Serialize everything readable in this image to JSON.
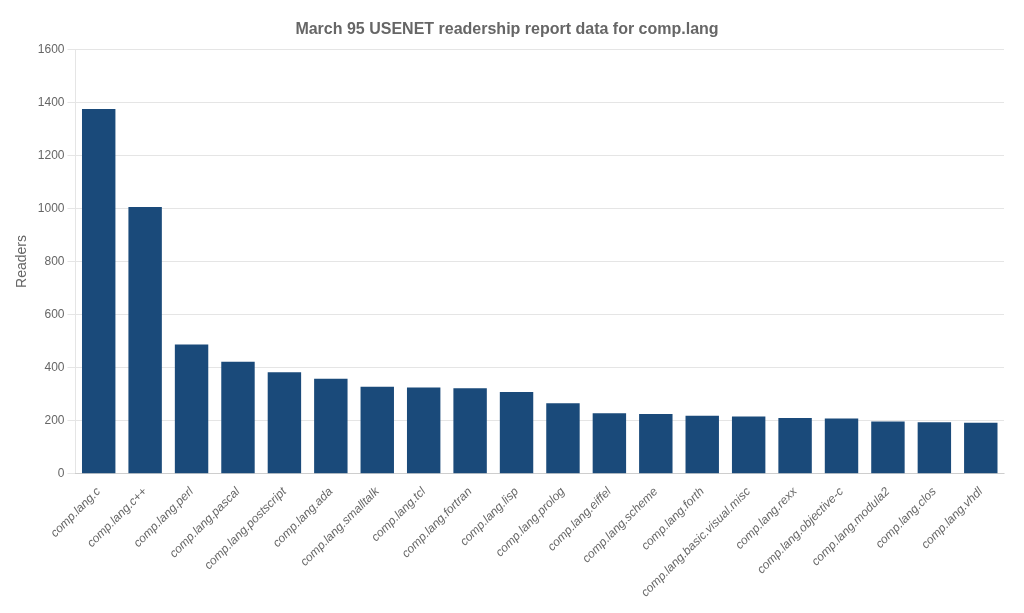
{
  "chart_data": {
    "type": "bar",
    "title": "March 95 USENET readership report data for comp.lang",
    "ylabel": "Readers",
    "categories": [
      "comp.lang.c",
      "comp.lang.c++",
      "comp.lang.perl",
      "comp.lang.pascal",
      "comp.lang.postscript",
      "comp.lang.ada",
      "comp.lang.smalltalk",
      "comp.lang.tcl",
      "comp.lang.fortran",
      "comp.lang.lisp",
      "comp.lang.prolog",
      "comp.lang.eiffel",
      "comp.lang.scheme",
      "comp.lang.forth",
      "comp.lang.basic.visual.misc",
      "comp.lang.rexx",
      "comp.lang.objective-c",
      "comp.lang.modula2",
      "comp.lang.clos",
      "comp.lang.vhdl"
    ],
    "values": [
      1375,
      1005,
      487,
      422,
      382,
      358,
      328,
      325,
      322,
      308,
      265,
      228,
      225,
      218,
      215,
      210,
      208,
      197,
      194,
      192
    ],
    "color": "#1a4a7a",
    "ylim": [
      0,
      1600
    ],
    "yticks": [
      0,
      200,
      400,
      600,
      800,
      1000,
      1200,
      1400,
      1600
    ],
    "grid": true
  }
}
